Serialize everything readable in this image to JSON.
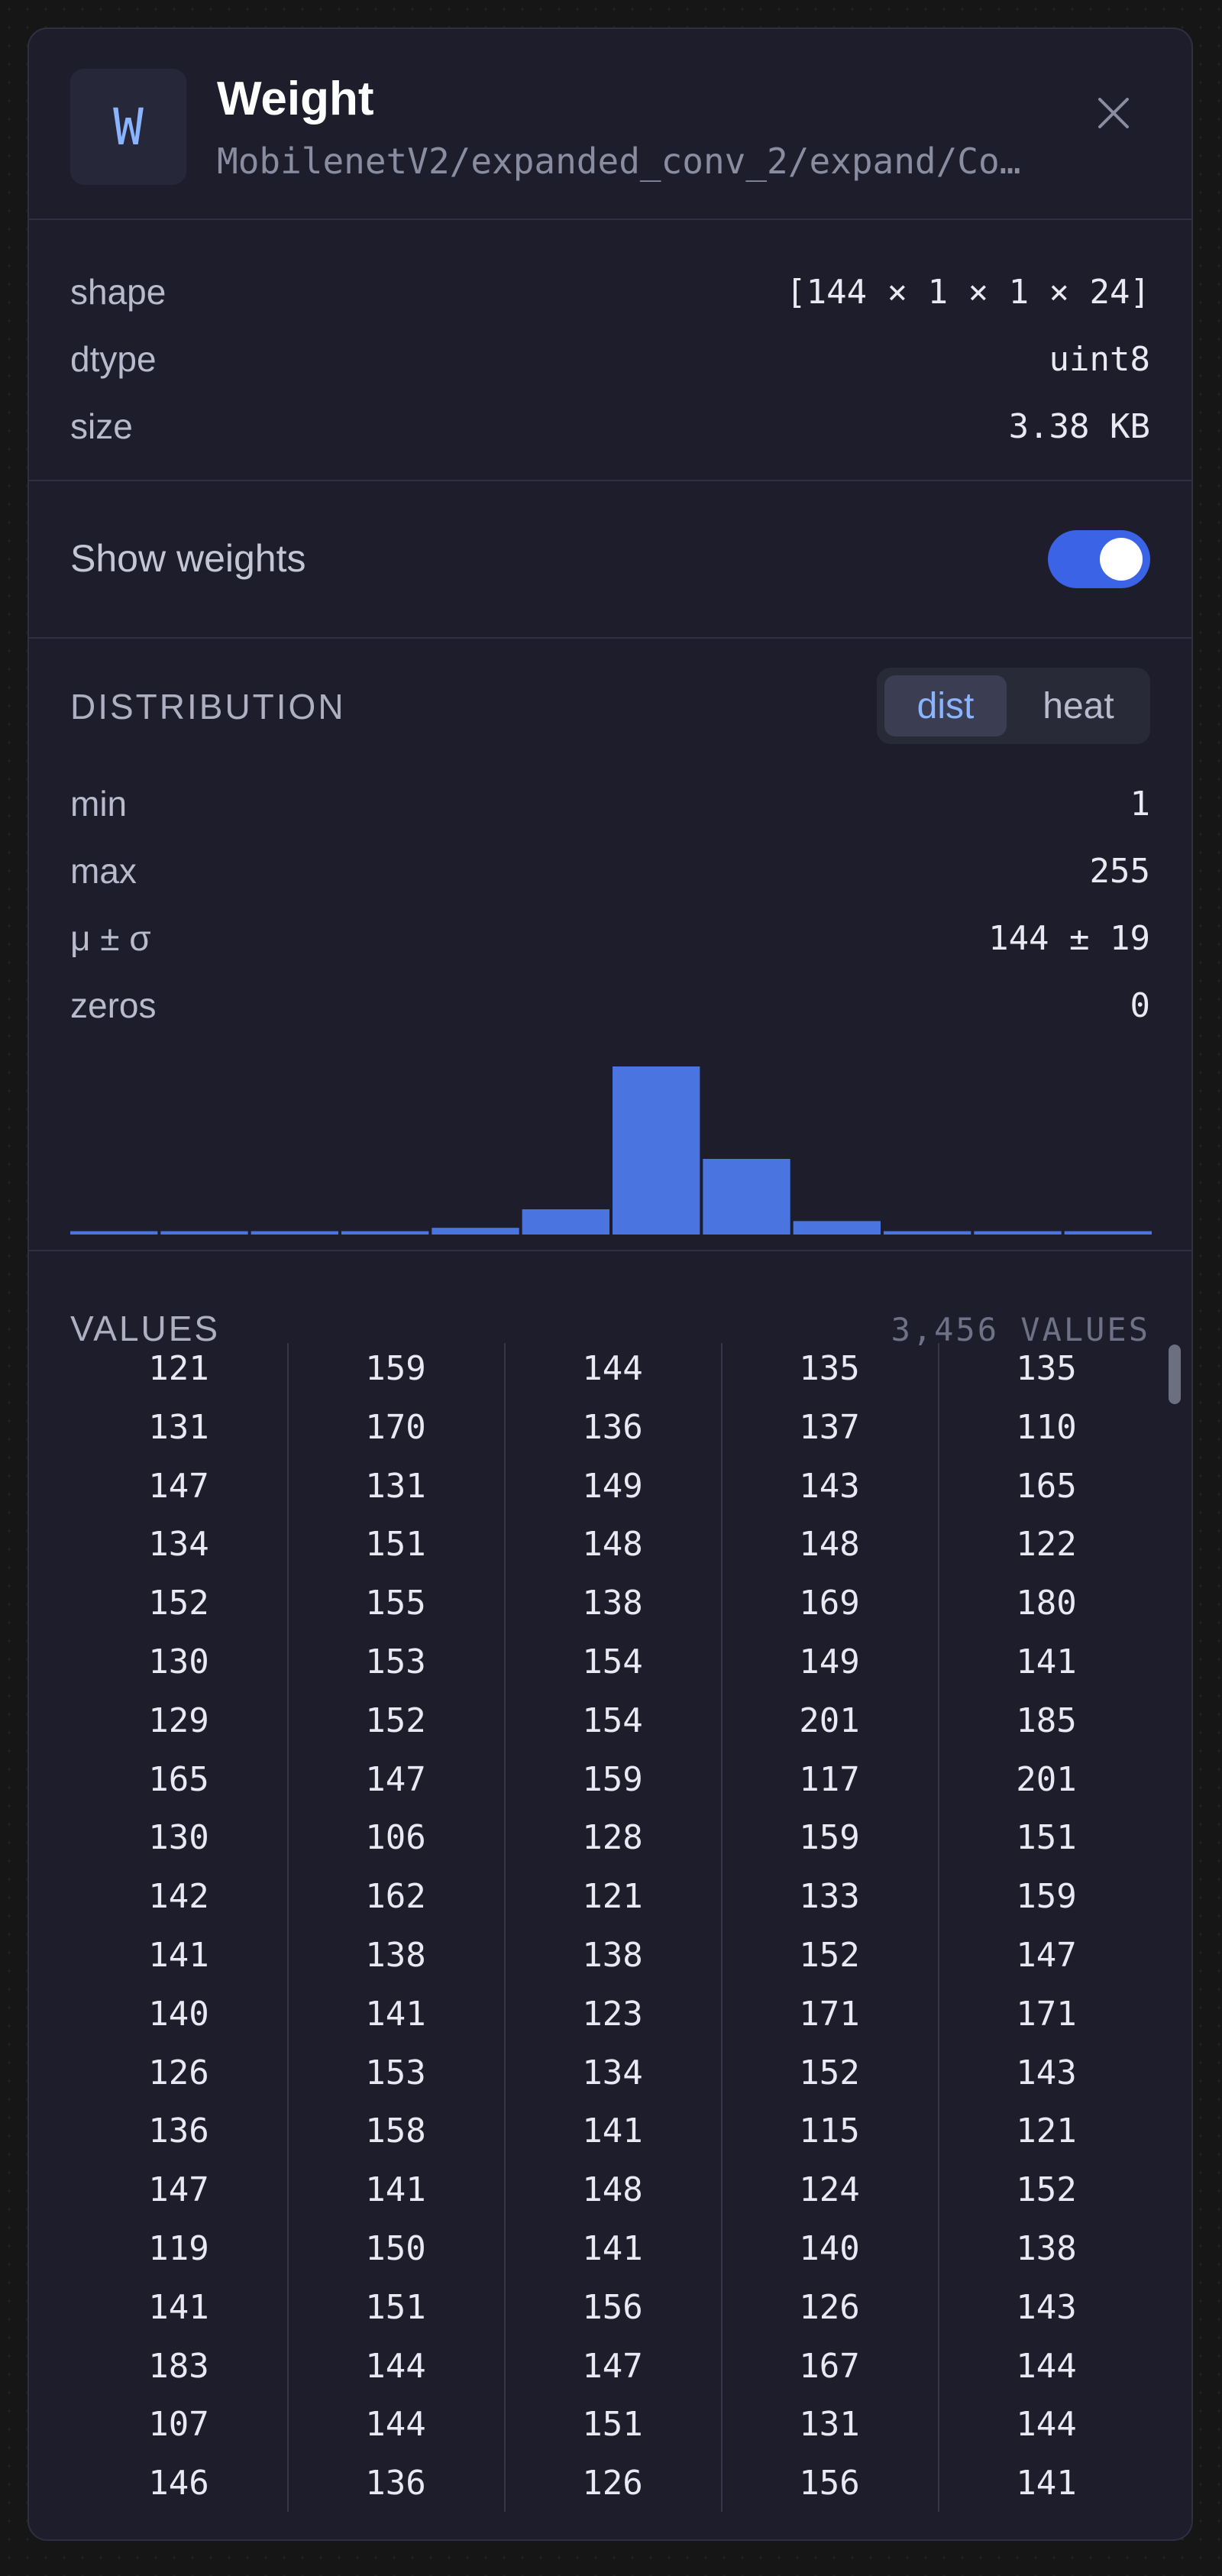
{
  "header": {
    "badge_letter": "W",
    "title": "Weight",
    "subtitle": "MobilenetV2/expanded_conv_2/expand/Co…",
    "close_icon": "close-icon"
  },
  "meta": {
    "rows": [
      {
        "key": "shape",
        "value": "[144 × 1 × 1 × 24]"
      },
      {
        "key": "dtype",
        "value": "uint8"
      },
      {
        "key": "size",
        "value": "3.38 KB"
      }
    ]
  },
  "show_weights": {
    "label": "Show weights",
    "enabled": true
  },
  "distribution": {
    "title": "DISTRIBUTION",
    "modes": [
      {
        "label": "dist",
        "active": true
      },
      {
        "label": "heat",
        "active": false
      }
    ],
    "stats": [
      {
        "key": "min",
        "value": "1"
      },
      {
        "key": "max",
        "value": "255"
      },
      {
        "key": "μ ± σ",
        "value": "144 ± 19"
      },
      {
        "key": "zeros",
        "value": "0"
      }
    ],
    "bar_color": "#4a75e0"
  },
  "chart_data": {
    "type": "bar",
    "categories": [
      "b1",
      "b2",
      "b3",
      "b4",
      "b5",
      "b6",
      "b7",
      "b8",
      "b9",
      "b10",
      "b11",
      "b12"
    ],
    "values": [
      0.02,
      0.02,
      0.02,
      0.02,
      0.04,
      0.15,
      1.0,
      0.45,
      0.08,
      0.02,
      0.02,
      0.02
    ],
    "ylim": [
      0,
      1
    ]
  },
  "values": {
    "title": "VALUES",
    "count": "3,456 VALUES",
    "columns": [
      [
        "121",
        "131",
        "147",
        "134",
        "152",
        "130",
        "129",
        "165",
        "130",
        "142",
        "141",
        "140",
        "126",
        "136",
        "147",
        "119",
        "141",
        "183",
        "107",
        "146"
      ],
      [
        "159",
        "170",
        "131",
        "151",
        "155",
        "153",
        "152",
        "147",
        "106",
        "162",
        "138",
        "141",
        "153",
        "158",
        "141",
        "150",
        "151",
        "144",
        "144",
        "136"
      ],
      [
        "144",
        "136",
        "149",
        "148",
        "138",
        "154",
        "154",
        "159",
        "128",
        "121",
        "138",
        "123",
        "134",
        "141",
        "148",
        "141",
        "156",
        "147",
        "151",
        "126"
      ],
      [
        "135",
        "137",
        "143",
        "148",
        "169",
        "149",
        "201",
        "117",
        "159",
        "133",
        "152",
        "171",
        "152",
        "115",
        "124",
        "140",
        "126",
        "167",
        "131",
        "156"
      ],
      [
        "135",
        "110",
        "165",
        "122",
        "180",
        "141",
        "185",
        "201",
        "151",
        "159",
        "147",
        "171",
        "143",
        "121",
        "152",
        "138",
        "143",
        "144",
        "144",
        "141"
      ]
    ]
  }
}
